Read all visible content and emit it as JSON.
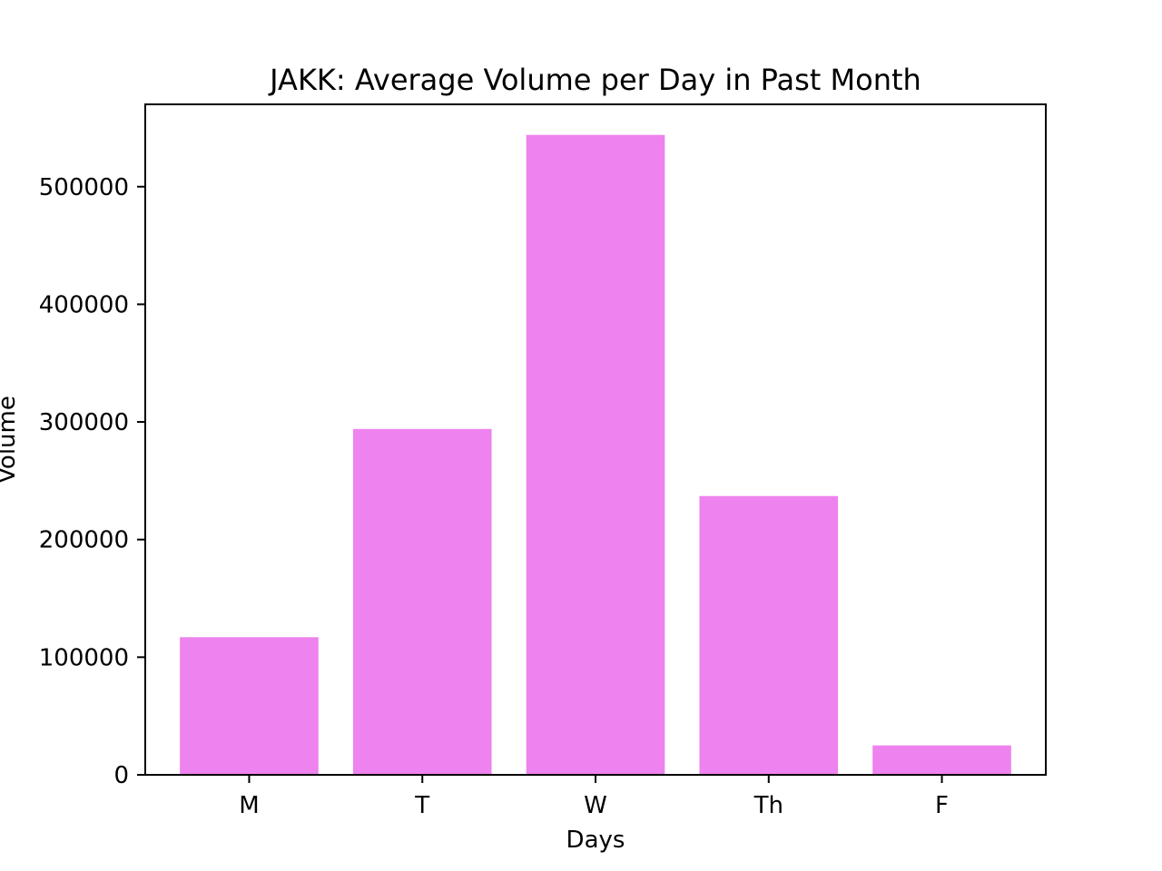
{
  "chart_data": {
    "type": "bar",
    "title": "JAKK: Average Volume per Day in Past Month",
    "xlabel": "Days",
    "ylabel": "Volume",
    "categories": [
      "M",
      "T",
      "W",
      "Th",
      "F"
    ],
    "values": [
      117000,
      294000,
      544000,
      237000,
      25000
    ],
    "ylim": [
      0,
      570000
    ],
    "yticks": [
      0,
      100000,
      200000,
      300000,
      400000,
      500000
    ],
    "ytick_labels": [
      "0",
      "100000",
      "200000",
      "300000",
      "400000",
      "500000"
    ],
    "bar_color": "#ee82ee",
    "grid": false,
    "legend": "none"
  }
}
